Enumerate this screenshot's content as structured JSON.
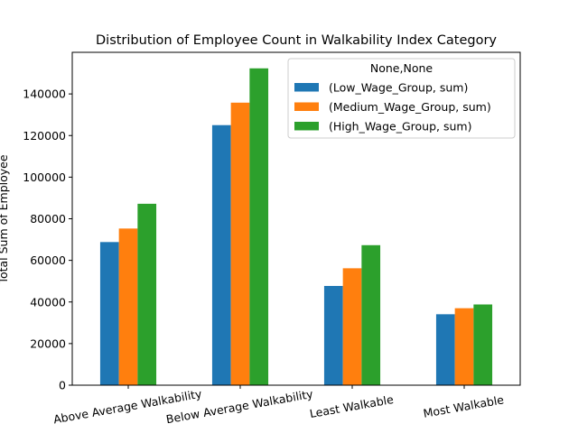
{
  "chart_data": {
    "type": "bar",
    "title": "Distribution of Employee Count in Walkability Index Category",
    "xlabel": "",
    "ylabel": "Total Sum of Employee",
    "categories": [
      "Above Average Walkability",
      "Below Average Walkability",
      "Least Walkable",
      "Most Walkable"
    ],
    "series": [
      {
        "name": "(Low_Wage_Group, sum)",
        "color": "#1f77b4",
        "values": [
          68800,
          125000,
          47700,
          34100
        ]
      },
      {
        "name": "(Medium_Wage_Group, sum)",
        "color": "#ff7f0e",
        "values": [
          75300,
          135800,
          56200,
          37000
        ]
      },
      {
        "name": "(High_Wage_Group, sum)",
        "color": "#2ca02c",
        "values": [
          87200,
          152300,
          67300,
          38800
        ]
      }
    ],
    "ylim": [
      0,
      160000
    ],
    "yticks": [
      0,
      20000,
      40000,
      60000,
      80000,
      100000,
      120000,
      140000
    ],
    "legend_title": "None,None",
    "legend_position": "top-right",
    "grid": false,
    "xtick_rotation": 10
  }
}
